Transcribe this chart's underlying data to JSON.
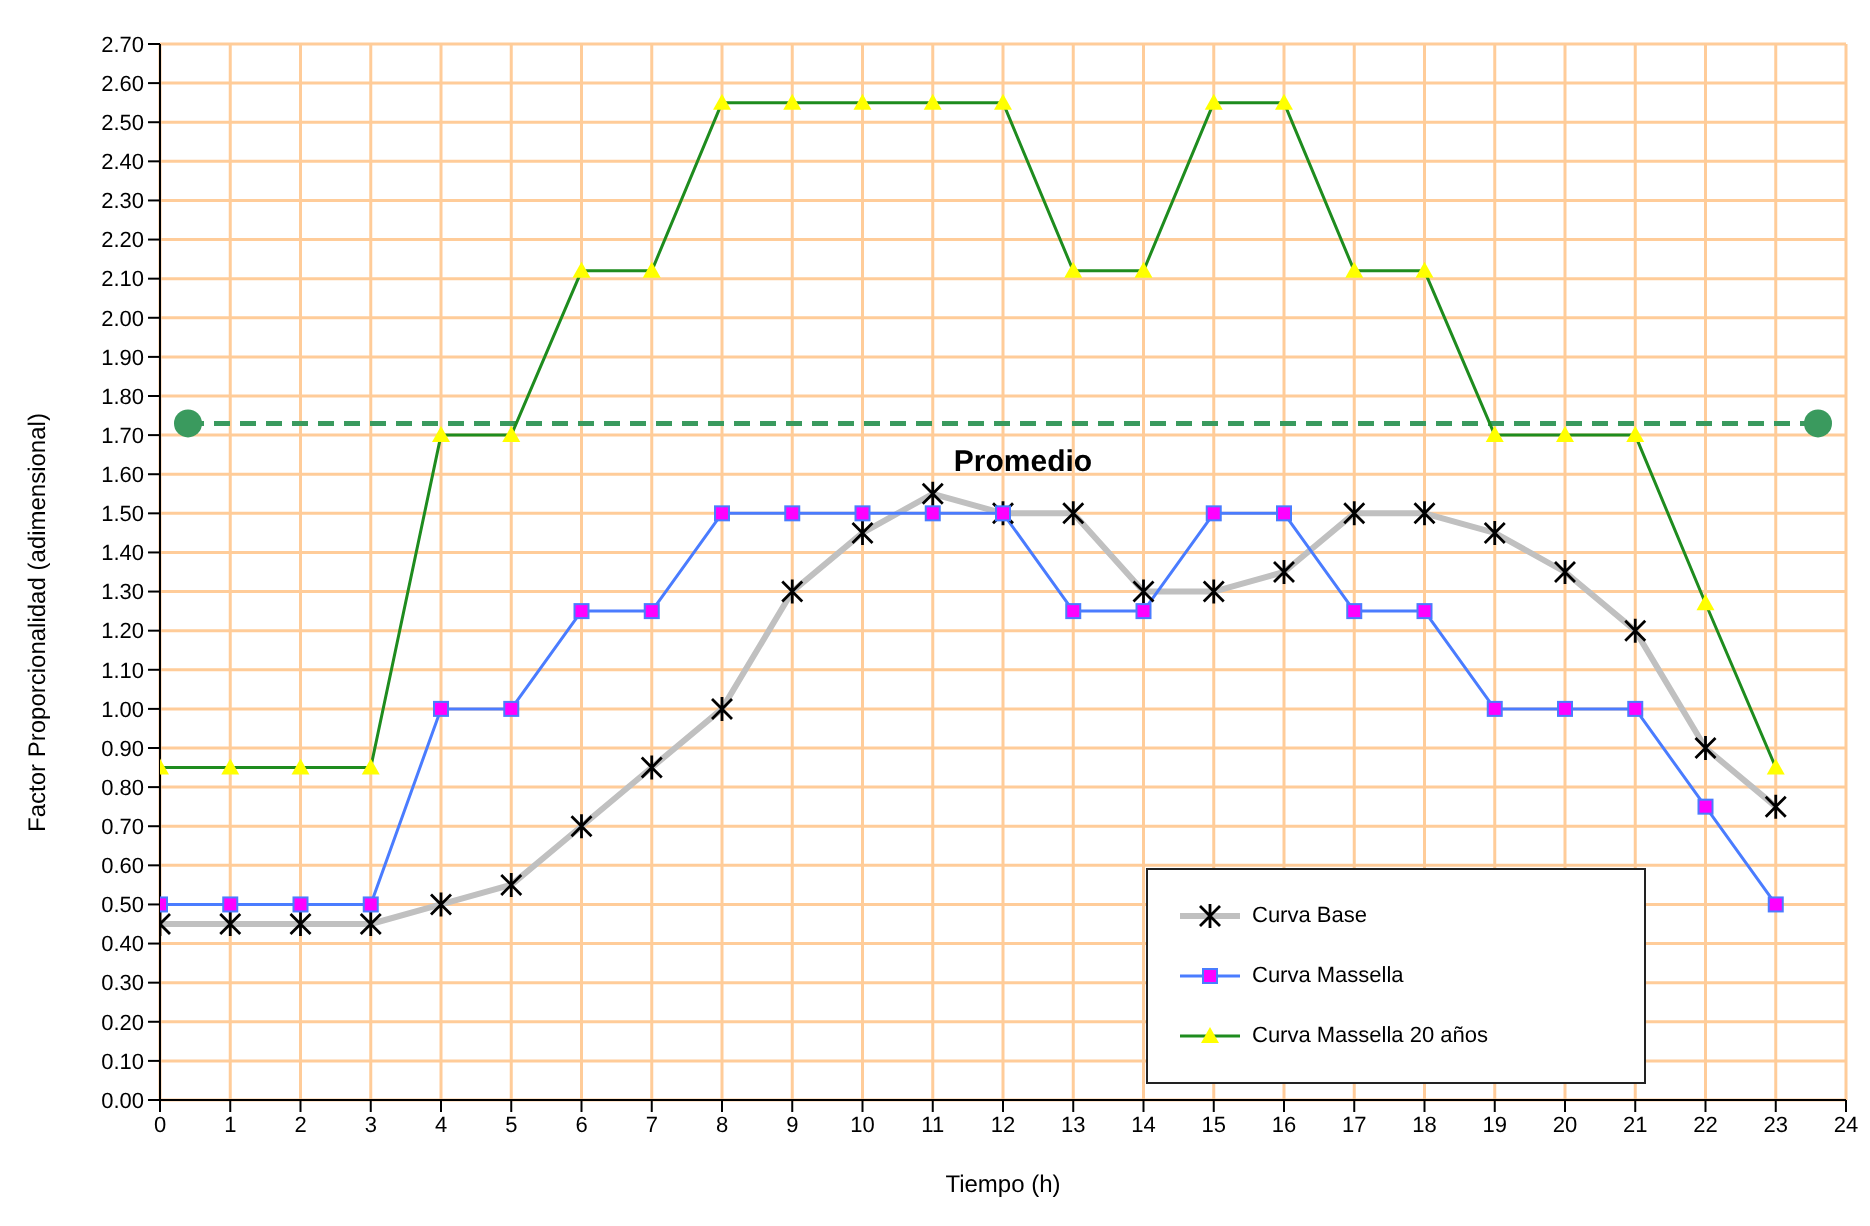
{
  "chart_data": {
    "type": "line",
    "xlabel": "Tiempo (h)",
    "ylabel": "Factor Proporcionalidad (adimensional)",
    "x": [
      0,
      1,
      2,
      3,
      4,
      5,
      6,
      7,
      8,
      9,
      10,
      11,
      12,
      13,
      14,
      15,
      16,
      17,
      18,
      19,
      20,
      21,
      22,
      23
    ],
    "series": [
      {
        "name": "Curva Base",
        "color": "#c0c0c0",
        "marker": "cross",
        "values": [
          0.45,
          0.45,
          0.45,
          0.45,
          0.5,
          0.55,
          0.7,
          0.85,
          1.0,
          1.3,
          1.45,
          1.55,
          1.5,
          1.5,
          1.3,
          1.3,
          1.35,
          1.5,
          1.5,
          1.45,
          1.35,
          1.2,
          0.9,
          0.75
        ]
      },
      {
        "name": "Curva Massella",
        "color": "#4a7cff",
        "marker": "square",
        "values": [
          0.5,
          0.5,
          0.5,
          0.5,
          1.0,
          1.0,
          1.25,
          1.25,
          1.5,
          1.5,
          1.5,
          1.5,
          1.5,
          1.25,
          1.25,
          1.5,
          1.5,
          1.25,
          1.25,
          1.0,
          1.0,
          1.0,
          0.75,
          0.5
        ]
      },
      {
        "name": "Curva Massella 20 años",
        "color": "#1e8c1e",
        "marker": "triangle",
        "values": [
          0.85,
          0.85,
          0.85,
          0.85,
          1.7,
          1.7,
          2.12,
          2.12,
          2.55,
          2.55,
          2.55,
          2.55,
          2.55,
          2.12,
          2.12,
          2.55,
          2.55,
          2.12,
          2.12,
          1.7,
          1.7,
          1.7,
          1.27,
          0.85
        ]
      }
    ],
    "ref_lines": [
      {
        "axis": "y",
        "value": 1.73,
        "label": "Promedio",
        "color": "#3a9a5e",
        "line_style": "dashed"
      }
    ],
    "xlim": [
      0,
      24
    ],
    "xticks": [
      0,
      1,
      2,
      3,
      4,
      5,
      6,
      7,
      8,
      9,
      10,
      11,
      12,
      13,
      14,
      15,
      16,
      17,
      18,
      19,
      20,
      21,
      22,
      23,
      24
    ],
    "ylim": [
      0,
      2.7
    ],
    "yticks": [
      {
        "value": 0,
        "label": "0.00"
      },
      {
        "value": 0.1,
        "label": "0.10"
      },
      {
        "value": 0.2,
        "label": "0.20"
      },
      {
        "value": 0.3,
        "label": "0.30"
      },
      {
        "value": 0.4,
        "label": "0.40"
      },
      {
        "value": 0.5,
        "label": "0.50"
      },
      {
        "value": 0.6,
        "label": "0.60"
      },
      {
        "value": 0.7,
        "label": "0.70"
      },
      {
        "value": 0.8,
        "label": "0.80"
      },
      {
        "value": 0.9,
        "label": "0.90"
      },
      {
        "value": 1.0,
        "label": "1.00"
      },
      {
        "value": 1.1,
        "label": "1.10"
      },
      {
        "value": 1.2,
        "label": "1.20"
      },
      {
        "value": 1.3,
        "label": "1.30"
      },
      {
        "value": 1.4,
        "label": "1.40"
      },
      {
        "value": 1.5,
        "label": "1.50"
      },
      {
        "value": 1.6,
        "label": "1.60"
      },
      {
        "value": 1.7,
        "label": "1.70"
      },
      {
        "value": 1.8,
        "label": "1.80"
      },
      {
        "value": 1.9,
        "label": "1.90"
      },
      {
        "value": 2.0,
        "label": "2.00"
      },
      {
        "value": 2.1,
        "label": "2.10"
      },
      {
        "value": 2.2,
        "label": "2.20"
      },
      {
        "value": 2.3,
        "label": "2.30"
      },
      {
        "value": 2.4,
        "label": "2.40"
      },
      {
        "value": 2.5,
        "label": "2.50"
      },
      {
        "value": 2.6,
        "label": "2.60"
      },
      {
        "value": 2.7,
        "label": "2.70"
      }
    ],
    "grid": true,
    "legend": "bottom right",
    "line_style": "solid"
  }
}
